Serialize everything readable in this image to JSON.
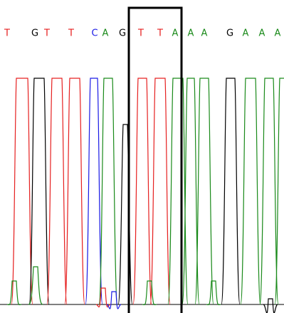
{
  "bases": [
    "T",
    "G",
    "T",
    "T",
    "C",
    "A",
    "G",
    "T",
    "T",
    "A",
    "A",
    "A",
    "G",
    "A",
    "A",
    "A"
  ]
}
